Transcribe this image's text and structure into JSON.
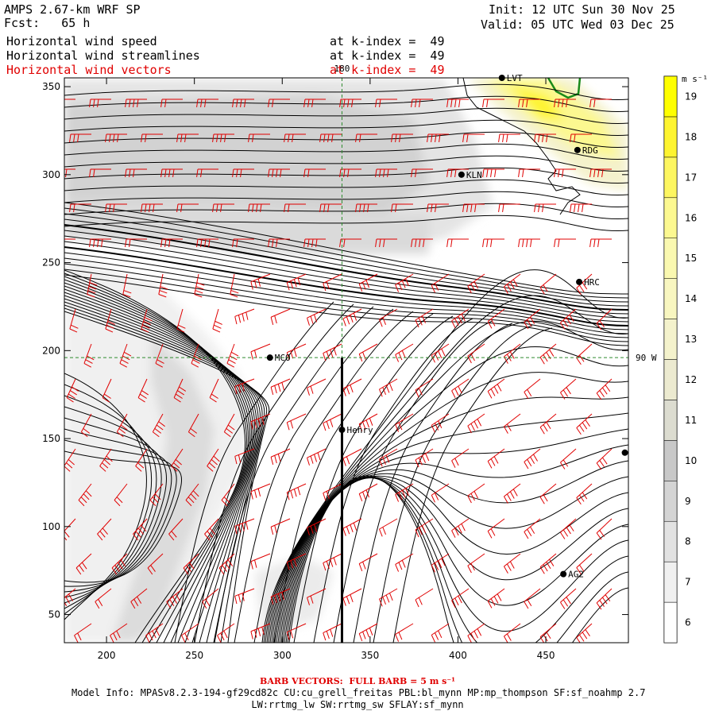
{
  "header": {
    "model_title": "AMPS 2.67-km WRF SP",
    "forecast": "Fcst:   65 h",
    "init": "Init: 12 UTC Sun 30 Nov 25",
    "valid": "Valid: 05 UTC Wed 03 Dec 25"
  },
  "fields": [
    {
      "label": "Horizontal wind speed",
      "level": "at k-index =  49",
      "color": "#000000"
    },
    {
      "label": "Horizontal wind streamlines",
      "level": "at k-index =  49",
      "color": "#000000"
    },
    {
      "label": "Horizontal wind vectors",
      "level": "at k-index =  49",
      "color": "#e00000"
    }
  ],
  "map": {
    "x_ticks": [
      200,
      250,
      300,
      350,
      400,
      450
    ],
    "y_ticks": [
      50,
      100,
      150,
      200,
      250,
      300,
      350
    ],
    "x_range": [
      176,
      497
    ],
    "y_range": [
      34,
      355
    ],
    "meridian_label": "180",
    "parallel_label": "90 W",
    "meridian_x": 334,
    "parallel_y": 196,
    "henry_track_x": 334,
    "stations": [
      {
        "name": "LVT",
        "x": 425,
        "y": 355
      },
      {
        "name": "RDG",
        "x": 468,
        "y": 314
      },
      {
        "name": "KLN",
        "x": 402,
        "y": 300
      },
      {
        "name": "HRC",
        "x": 469,
        "y": 239
      },
      {
        "name": "MCO",
        "x": 293,
        "y": 196
      },
      {
        "name": "Henry",
        "x": 334,
        "y": 155
      },
      {
        "name": "",
        "x": 495,
        "y": 142
      },
      {
        "name": "AG2",
        "x": 460,
        "y": 73
      }
    ]
  },
  "colorbar": {
    "units": "m s⁻¹",
    "labels": [
      6,
      7,
      8,
      9,
      10,
      11,
      12,
      13,
      14,
      15,
      16,
      17,
      18,
      19
    ],
    "colors": [
      "#ffffff",
      "#f0f0f0",
      "#e2e2e2",
      "#d4d4d4",
      "#c8c8c8",
      "#dcdcd0",
      "#ecead0",
      "#f4f2cc",
      "#f8f6c0",
      "#faf8b0",
      "#fcf890",
      "#fdf660",
      "#fef430",
      "#ffff00"
    ]
  },
  "footer": {
    "barb_note": "BARB VECTORS:  FULL BARB = 5 m s⁻¹",
    "model_info": "Model Info: MPASv8.2.3-194-gf29cd82c CU:cu_grell_freitas PBL:bl_mynn MP:mp_thompson SF:sf_noahmp 2.7",
    "physics": "LW:rrtmg_lw SW:rrtmg_sw SFLAY:sf_mynn"
  }
}
